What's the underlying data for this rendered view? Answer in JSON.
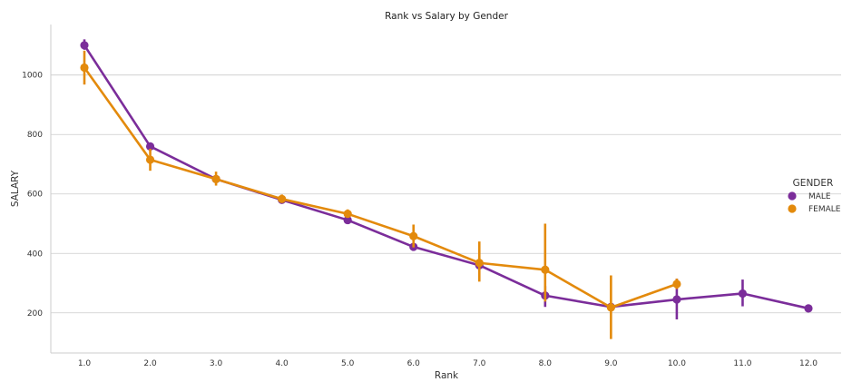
{
  "chart_data": {
    "type": "line",
    "title": "Rank vs Salary by Gender",
    "xlabel": "Rank",
    "ylabel": "SALARY",
    "categories": [
      "1.0",
      "2.0",
      "3.0",
      "4.0",
      "5.0",
      "6.0",
      "7.0",
      "8.0",
      "9.0",
      "10.0",
      "11.0",
      "12.0"
    ],
    "yticks": [
      200,
      400,
      600,
      800,
      1000
    ],
    "ylim": [
      65,
      1170
    ],
    "grid": "horizontal",
    "legend": {
      "title": "GENDER",
      "position": "right"
    },
    "series": [
      {
        "name": "MALE",
        "color": "#7b2d9a",
        "values": [
          1100,
          760,
          650,
          580,
          512,
          422,
          360,
          258,
          220,
          245,
          265,
          215
        ],
        "ci_low": [
          1085,
          745,
          638,
          570,
          500,
          412,
          350,
          220,
          210,
          178,
          222,
          null
        ],
        "ci_high": [
          1120,
          772,
          662,
          590,
          525,
          432,
          372,
          290,
          230,
          315,
          312,
          null
        ]
      },
      {
        "name": "FEMALE",
        "color": "#e38a0c",
        "values": [
          1025,
          715,
          650,
          583,
          533,
          458,
          368,
          345,
          218,
          297,
          null,
          null
        ],
        "ci_low": [
          968,
          678,
          628,
          570,
          520,
          420,
          305,
          238,
          112,
          280,
          null,
          null
        ],
        "ci_high": [
          1082,
          752,
          675,
          598,
          548,
          497,
          440,
          500,
          326,
          315,
          null,
          null
        ]
      }
    ]
  }
}
